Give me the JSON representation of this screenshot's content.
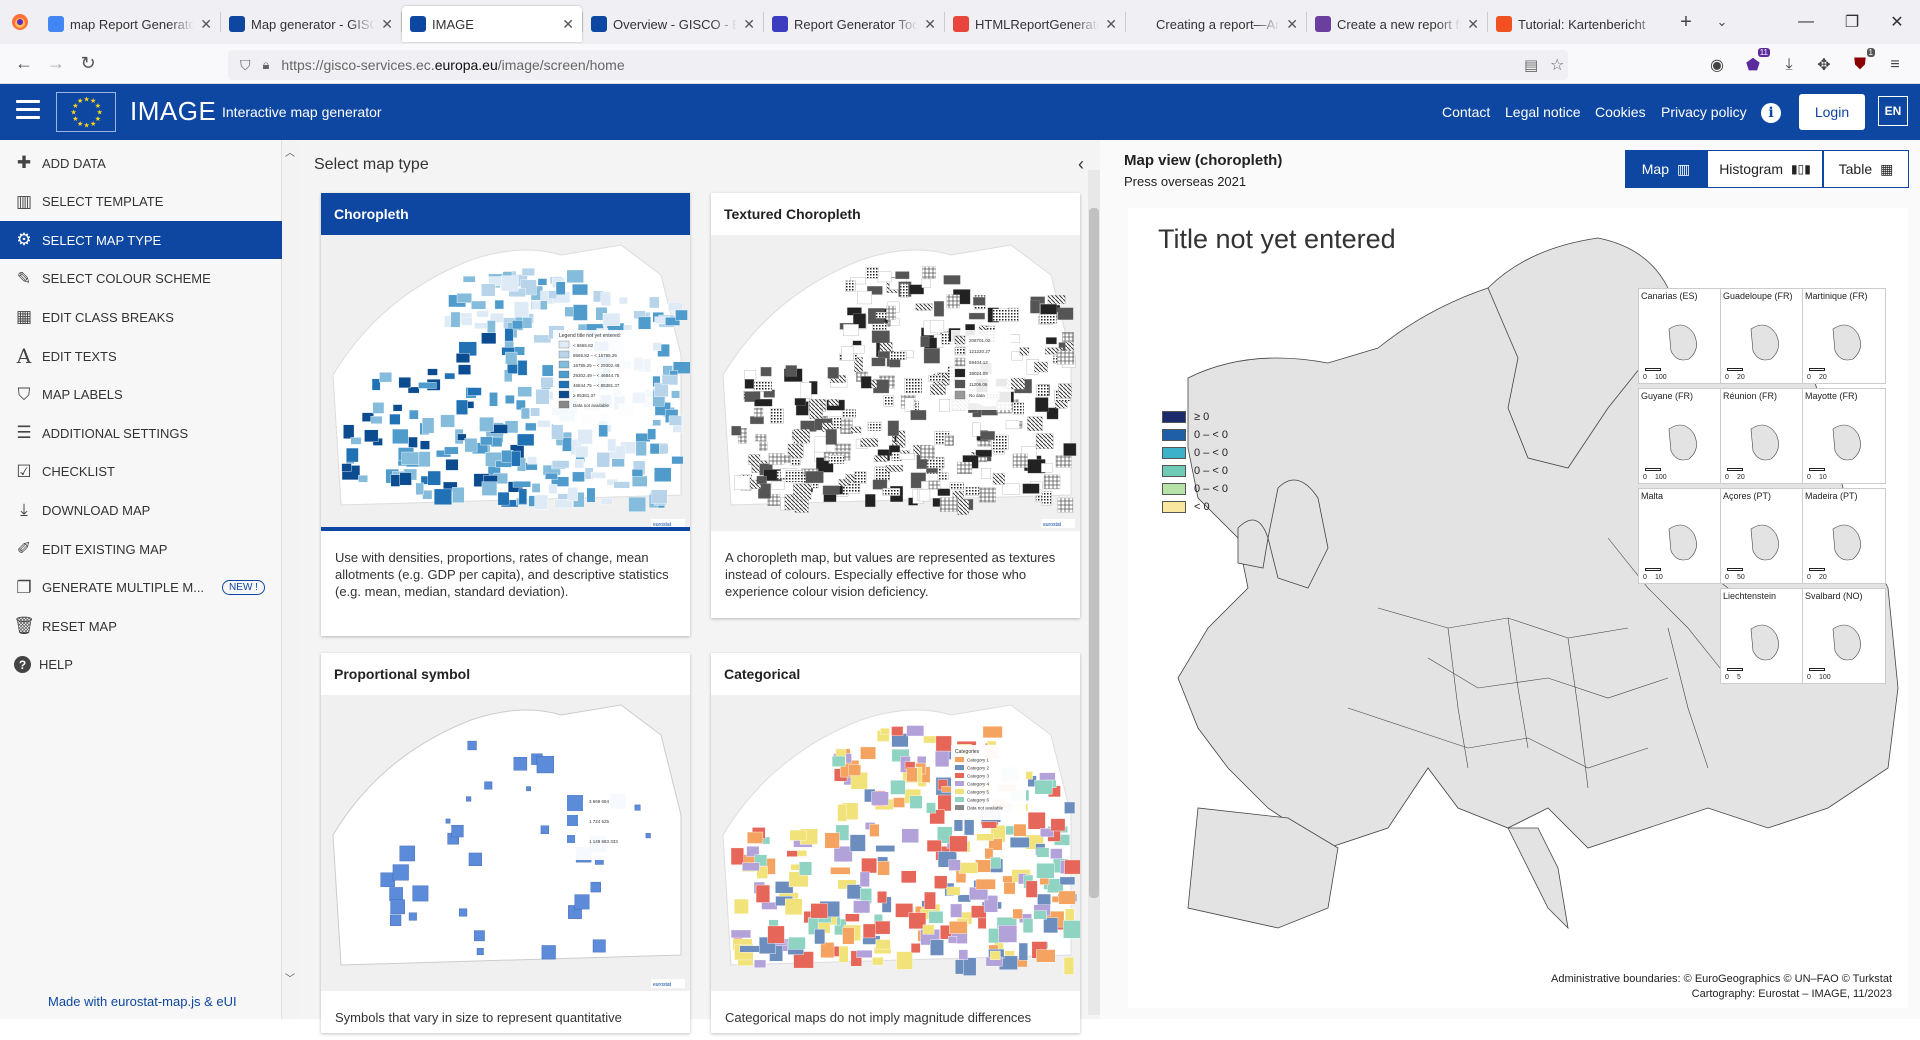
{
  "browser": {
    "tabs": [
      {
        "label": "map Report Generator",
        "favicon": "google-icon",
        "color": "#4285f4"
      },
      {
        "label": "Map generator - GISCO",
        "favicon": "eu-flag-icon",
        "color": "#0e47a1"
      },
      {
        "label": "IMAGE",
        "favicon": "eu-flag-icon",
        "color": "#0e47a1",
        "active": true
      },
      {
        "label": "Overview - GISCO - Eur",
        "favicon": "eu-flag-icon",
        "color": "#0e47a1"
      },
      {
        "label": "Report Generator Tool |",
        "favicon": "shield-icon",
        "color": "#3c3cbe"
      },
      {
        "label": "HTMLReportGenerator",
        "favicon": "colorful-icon",
        "color": "#e8453c"
      },
      {
        "label": "Creating a report—ArcMap",
        "favicon": "none",
        "color": "#f0f0f4"
      },
      {
        "label": "Create a new report fro",
        "favicon": "doc-icon",
        "color": "#6b3fa0"
      },
      {
        "label": "Tutorial: Kartenbericht",
        "favicon": "microsoft-icon",
        "color": "#f25022"
      }
    ],
    "url_prefix": "https://gisco-services.ec.",
    "url_domain": "europa.eu",
    "url_path": "/image/screen/home",
    "ext_badge_1": "11",
    "ext_badge_2": "1"
  },
  "header": {
    "app_name": "IMAGE",
    "app_subtitle": "Interactive map generator",
    "links": [
      "Contact",
      "Legal notice",
      "Cookies",
      "Privacy policy"
    ],
    "login": "Login",
    "lang": "EN"
  },
  "sidebar": {
    "items": [
      {
        "label": "ADD DATA",
        "icon": "plus-icon"
      },
      {
        "label": "SELECT TEMPLATE",
        "icon": "map-icon"
      },
      {
        "label": "SELECT MAP TYPE",
        "icon": "gears-icon",
        "active": true
      },
      {
        "label": "SELECT COLOUR SCHEME",
        "icon": "paintbrush-icon"
      },
      {
        "label": "EDIT CLASS BREAKS",
        "icon": "table-icon"
      },
      {
        "label": "EDIT TEXTS",
        "icon": "font-icon"
      },
      {
        "label": "MAP LABELS",
        "icon": "tags-icon"
      },
      {
        "label": "ADDITIONAL SETTINGS",
        "icon": "sliders-icon"
      },
      {
        "label": "CHECKLIST",
        "icon": "checkbox-icon"
      },
      {
        "label": "DOWNLOAD MAP",
        "icon": "download-icon"
      },
      {
        "label": "EDIT EXISTING MAP",
        "icon": "edit-icon"
      },
      {
        "label": "GENERATE MULTIPLE M...",
        "icon": "copy-icon",
        "badge": "NEW !"
      },
      {
        "label": "RESET MAP",
        "icon": "trash-icon"
      },
      {
        "label": "HELP",
        "icon": "question-icon"
      }
    ],
    "footer": "Made with eurostat-map.js & eUI"
  },
  "map_types": {
    "header": "Select map type",
    "cards": [
      {
        "title": "Choropleth",
        "desc": "Use with densities, proportions, rates of change, mean allotments (e.g. GDP per capita), and descriptive statistics (e.g. mean, median, standard deviation).",
        "selected": true
      },
      {
        "title": "Textured Choropleth",
        "desc": "A choropleth map, but values are represented as textures instead of colours. Especially effective for those who experience colour vision deficiency."
      },
      {
        "title": "Proportional symbol",
        "desc": "Symbols that vary in size to represent quantitative"
      },
      {
        "title": "Categorical",
        "desc": "Categorical maps do not imply magnitude differences"
      }
    ],
    "thumb_legend": {
      "choropleth_title": "Legend title not yet entered:",
      "choropleth": [
        "< 8665.82",
        "8665.82 – < 16785.25",
        "16785.25 – < 29302.49",
        "29302.49 – < 46844.75",
        "46844.75 – < 85381.37",
        "≥ 85381.37",
        "Data not available"
      ],
      "textured": [
        "208701.02",
        "121220.27",
        "69404.12",
        "38024.09",
        "11206.06",
        "No data"
      ],
      "proportional": [
        "3 669 694",
        "1 724 525",
        "1 149 683.333"
      ],
      "categorical_title": "Categories",
      "categorical": [
        "Category 1",
        "Category 2",
        "Category 3",
        "Category 4",
        "Category 5",
        "Category 6",
        "Data not available"
      ],
      "brand": "eurostat"
    }
  },
  "map_view": {
    "title": "Map view (choropleth)",
    "subtitle": "Press overseas 2021",
    "tabs": [
      {
        "label": "Map",
        "icon": "map-icon",
        "active": true
      },
      {
        "label": "Histogram",
        "icon": "chart-icon"
      },
      {
        "label": "Table",
        "icon": "table-icon"
      }
    ],
    "map_title": "Title not yet entered",
    "legend": [
      {
        "label": "≥ 0",
        "color": "#1a2a6c"
      },
      {
        "label": "0 – < 0",
        "color": "#1f5fa8"
      },
      {
        "label": "0 – < 0",
        "color": "#3db1c8"
      },
      {
        "label": "0 – < 0",
        "color": "#6fcbb5"
      },
      {
        "label": "0 – < 0",
        "color": "#b7e3a8"
      },
      {
        "label": "< 0",
        "color": "#f9e79f"
      }
    ],
    "insets": [
      {
        "name": "Canarias (ES)",
        "scale": "100"
      },
      {
        "name": "Guadeloupe (FR)",
        "scale": "20"
      },
      {
        "name": "Martinique (FR)",
        "scale": "20"
      },
      {
        "name": "Guyane (FR)",
        "scale": "100"
      },
      {
        "name": "Réunion (FR)",
        "scale": "20"
      },
      {
        "name": "Mayotte (FR)",
        "scale": "10"
      },
      {
        "name": "Malta",
        "scale": "10"
      },
      {
        "name": "Açores (PT)",
        "scale": "50"
      },
      {
        "name": "Madeira (PT)",
        "scale": "20"
      },
      {
        "name": "Liechtenstein",
        "scale": "5"
      },
      {
        "name": "Svalbard (NO)",
        "scale": "100"
      }
    ],
    "credits_1": "Administrative boundaries: © EuroGeographics © UN–FAO © Turkstat",
    "credits_2": "Cartography: Eurostat – IMAGE, 11/2023"
  }
}
